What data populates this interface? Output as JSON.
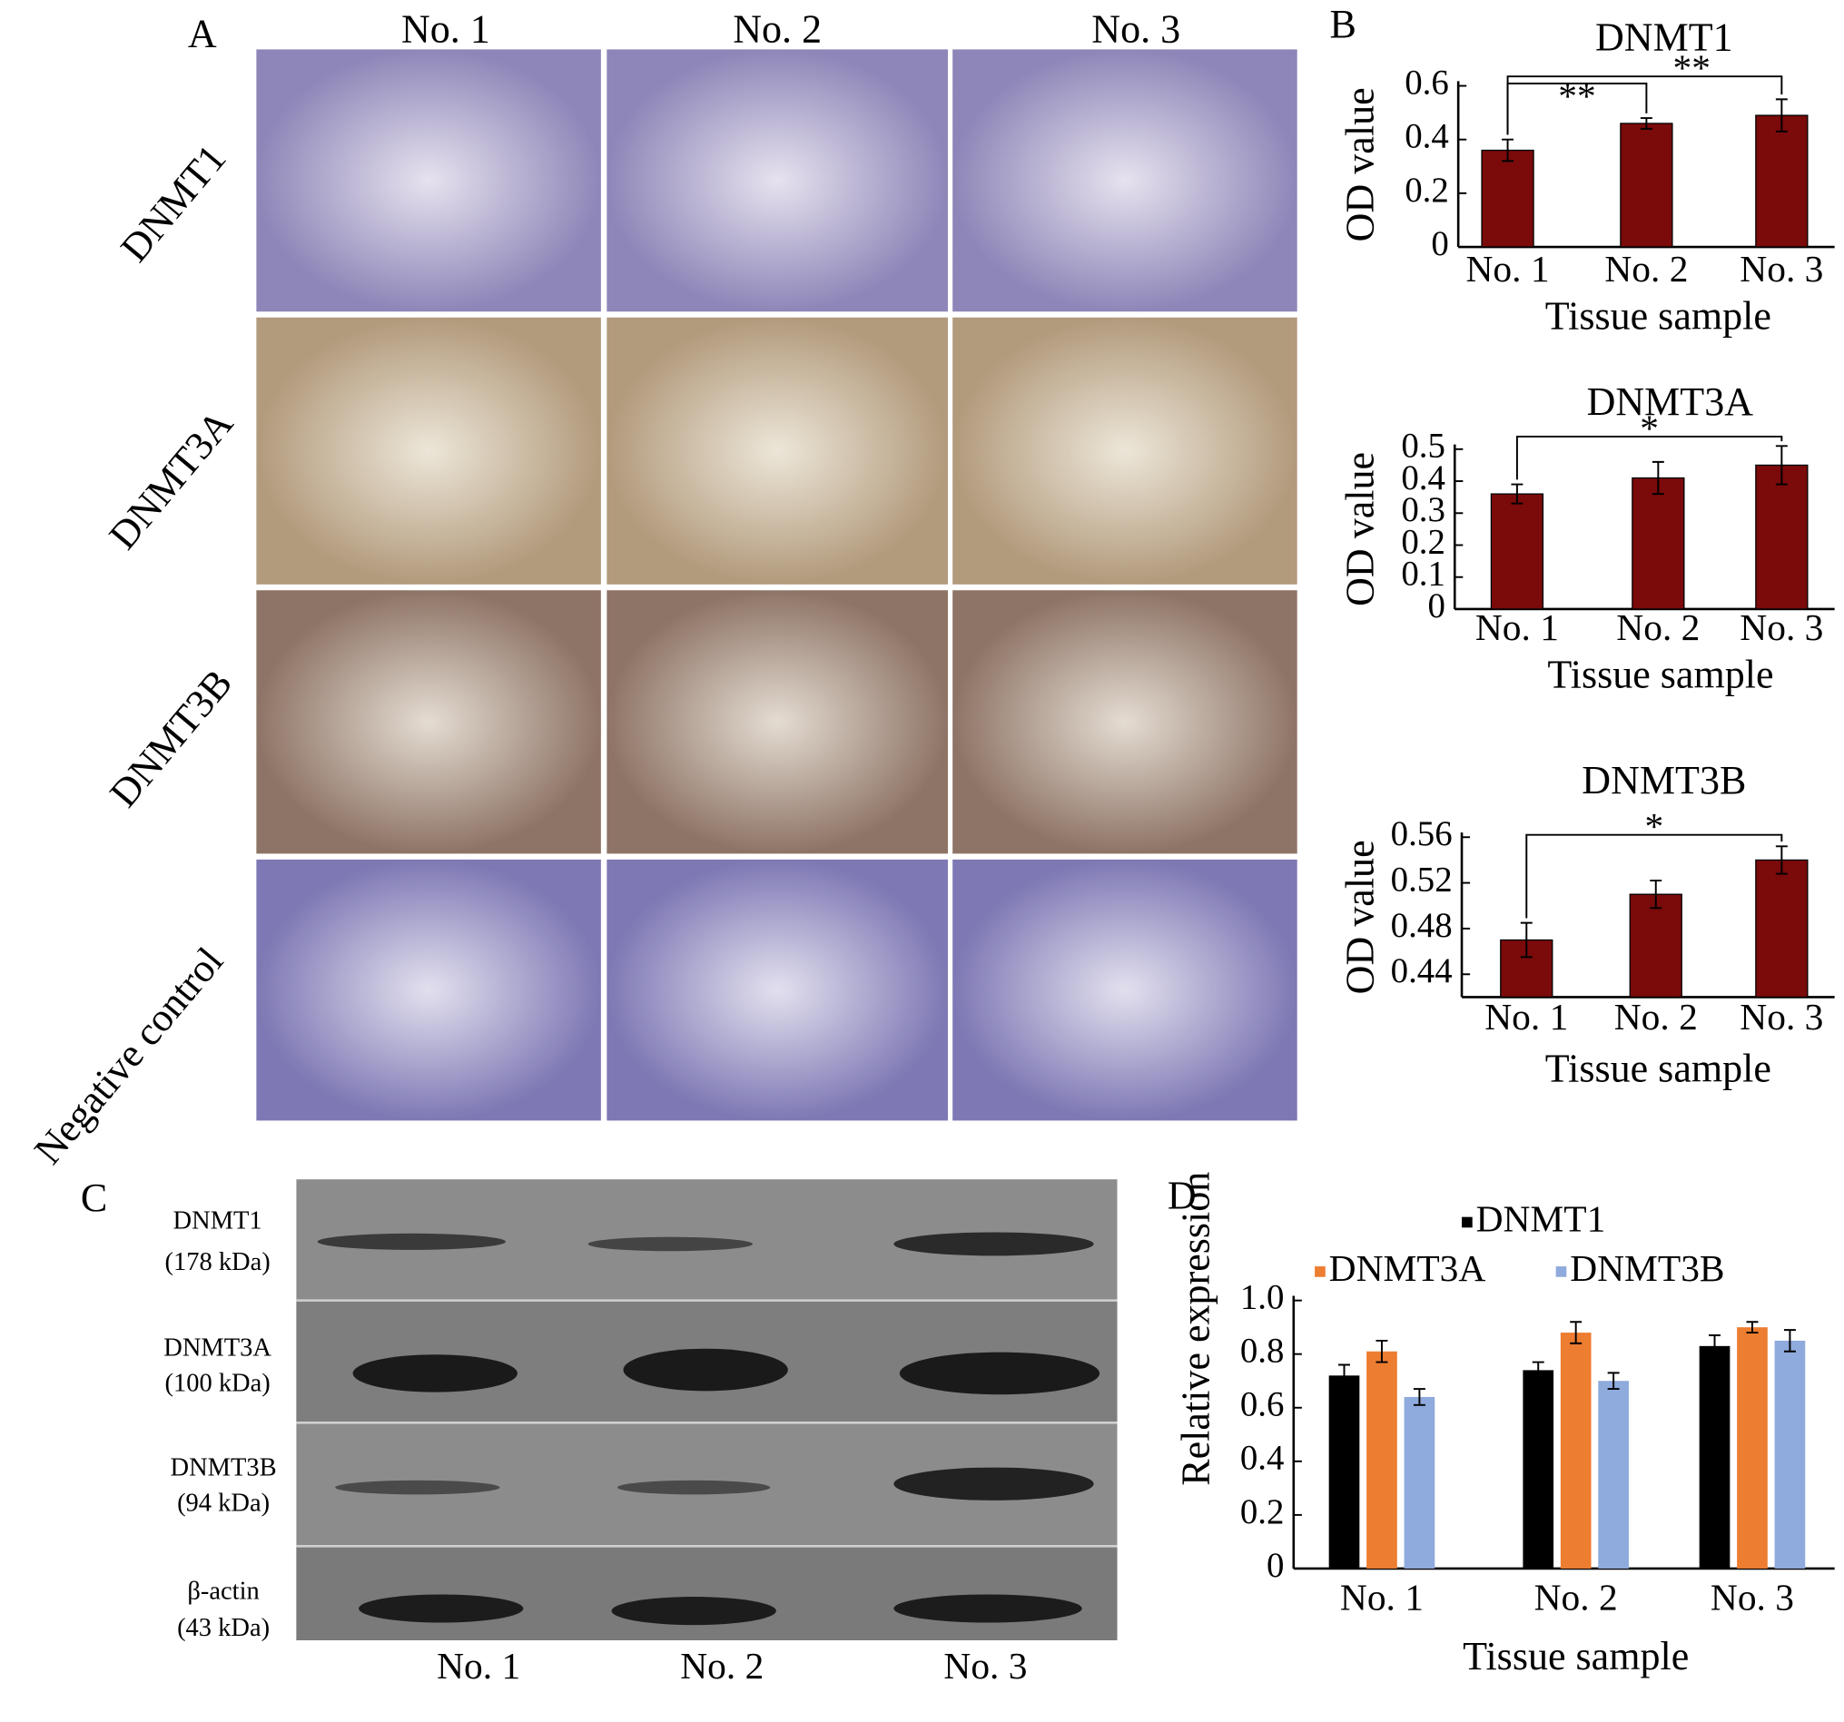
{
  "panel_labels": [
    "A",
    "B",
    "C",
    "D"
  ],
  "histology": {
    "columns": [
      "No. 1",
      "No. 2",
      "No. 3"
    ],
    "rows": [
      "DNMT1",
      "DNMT3A",
      "DNMT3B",
      "Negative control"
    ]
  },
  "western_blot": {
    "columns": [
      "No. 1",
      "No. 2",
      "No. 3"
    ],
    "rows": [
      {
        "name": "DNMT1",
        "size": "(178 kDa)"
      },
      {
        "name": "DNMT3A",
        "size": "(100 kDa)"
      },
      {
        "name": "DNMT3B",
        "size": "(94 kDa)"
      },
      {
        "name": "β-actin",
        "size": "(43 kDa)"
      }
    ]
  },
  "chart_data": [
    {
      "type": "bar",
      "title": "DNMT1",
      "y_label": "OD value",
      "x_label": "Tissue sample",
      "color": "#7b0a0a",
      "categories": [
        "No. 1",
        "No. 2",
        "No. 3"
      ],
      "values": [
        0.36,
        0.46,
        0.49
      ],
      "errors": [
        0.04,
        0.02,
        0.06
      ],
      "ylim": [
        0,
        0.6
      ],
      "yticks": [
        0,
        0.2,
        0.4,
        0.6
      ],
      "annotations": [
        {
          "text": "**",
          "from": 0,
          "to": 1
        },
        {
          "text": "**",
          "from": 0,
          "to": 2
        }
      ]
    },
    {
      "type": "bar",
      "title": "DNMT3A",
      "y_label": "OD value",
      "x_label": "Tissue sample",
      "color": "#7b0a0a",
      "categories": [
        "No. 1",
        "No. 2",
        "No. 3"
      ],
      "values": [
        0.36,
        0.41,
        0.45
      ],
      "errors": [
        0.03,
        0.05,
        0.06
      ],
      "ylim": [
        0,
        0.5
      ],
      "yticks": [
        0,
        0.1,
        0.2,
        0.3,
        0.4,
        0.5
      ],
      "annotations": [
        {
          "text": "*",
          "from": 0,
          "to": 2
        }
      ]
    },
    {
      "type": "bar",
      "title": "DNMT3B",
      "y_label": "OD value",
      "x_label": "Tissue sample",
      "color": "#7b0a0a",
      "categories": [
        "No. 1",
        "No. 2",
        "No. 3"
      ],
      "values": [
        0.47,
        0.51,
        0.54
      ],
      "errors": [
        0.015,
        0.012,
        0.012
      ],
      "ylim": [
        0.42,
        0.56
      ],
      "yticks": [
        0.44,
        0.48,
        0.52,
        0.56
      ],
      "annotations": [
        {
          "text": "*",
          "from": 0,
          "to": 2
        }
      ]
    },
    {
      "type": "bar",
      "y_label": "Relative expression",
      "x_label": "Tissue sample",
      "categories": [
        "No. 1",
        "No. 2",
        "No. 3"
      ],
      "series": [
        {
          "name": "DNMT1",
          "color": "#000000",
          "values": [
            0.72,
            0.74,
            0.83
          ],
          "errors": [
            0.04,
            0.03,
            0.04
          ]
        },
        {
          "name": "DNMT3A",
          "color": "#ed7d31",
          "values": [
            0.81,
            0.88,
            0.9
          ],
          "errors": [
            0.04,
            0.04,
            0.02
          ]
        },
        {
          "name": "DNMT3B",
          "color": "#8faadc",
          "values": [
            0.64,
            0.7,
            0.85
          ],
          "errors": [
            0.03,
            0.03,
            0.04
          ]
        }
      ],
      "ylim": [
        0,
        1
      ],
      "yticks": [
        0,
        0.2,
        0.4,
        0.6,
        0.8,
        {
          "value": 1,
          "label": "1.0"
        }
      ]
    }
  ]
}
